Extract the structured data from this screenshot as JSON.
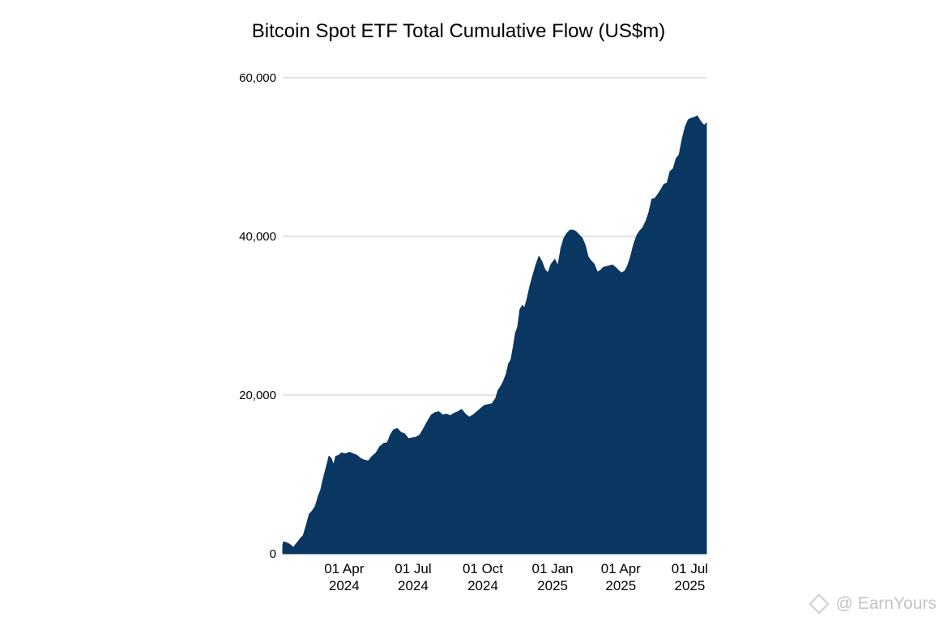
{
  "chart_data": {
    "type": "area",
    "title": "Bitcoin Spot ETF Total Cumulative Flow (US$m)",
    "xlabel": "",
    "ylabel": "",
    "ylim": [
      0,
      60000
    ],
    "yticks": [
      {
        "value": 0,
        "label": "0"
      },
      {
        "value": 20000,
        "label": "20,000"
      },
      {
        "value": 40000,
        "label": "40,000"
      },
      {
        "value": 60000,
        "label": "60,000"
      }
    ],
    "xlim": [
      "2024-01-11",
      "2025-07-23"
    ],
    "xticks": [
      {
        "date": "2024-04-01",
        "line1": "01 Apr",
        "line2": "2024"
      },
      {
        "date": "2024-07-01",
        "line1": "01 Jul",
        "line2": "2024"
      },
      {
        "date": "2024-10-01",
        "line1": "01 Oct",
        "line2": "2024"
      },
      {
        "date": "2025-01-01",
        "line1": "01 Jan",
        "line2": "2025"
      },
      {
        "date": "2025-04-01",
        "line1": "01 Apr",
        "line2": "2025"
      },
      {
        "date": "2025-07-01",
        "line1": "01 Jul",
        "line2": "2025"
      }
    ],
    "grid": true,
    "colors": {
      "area": "#0a3762",
      "grid": "#d0d0d0"
    },
    "series": [
      {
        "points": [
          [
            "2024-01-11",
            1000
          ],
          [
            "2024-01-12",
            1500
          ],
          [
            "2024-01-16",
            1400
          ],
          [
            "2024-01-20",
            1200
          ],
          [
            "2024-01-25",
            800
          ],
          [
            "2024-01-30",
            1400
          ],
          [
            "2024-02-03",
            1900
          ],
          [
            "2024-02-07",
            2300
          ],
          [
            "2024-02-11",
            3600
          ],
          [
            "2024-02-15",
            5000
          ],
          [
            "2024-02-19",
            5400
          ],
          [
            "2024-02-23",
            6000
          ],
          [
            "2024-02-27",
            7300
          ],
          [
            "2024-03-01",
            8000
          ],
          [
            "2024-03-04",
            9300
          ],
          [
            "2024-03-07",
            10400
          ],
          [
            "2024-03-10",
            11500
          ],
          [
            "2024-03-12",
            12300
          ],
          [
            "2024-03-15",
            12000
          ],
          [
            "2024-03-18",
            11200
          ],
          [
            "2024-03-21",
            12300
          ],
          [
            "2024-03-25",
            12400
          ],
          [
            "2024-03-28",
            12700
          ],
          [
            "2024-04-03",
            12600
          ],
          [
            "2024-04-08",
            12800
          ],
          [
            "2024-04-13",
            12600
          ],
          [
            "2024-04-18",
            12400
          ],
          [
            "2024-04-23",
            12000
          ],
          [
            "2024-04-28",
            11800
          ],
          [
            "2024-05-03",
            11700
          ],
          [
            "2024-05-08",
            12300
          ],
          [
            "2024-05-13",
            12700
          ],
          [
            "2024-05-18",
            13500
          ],
          [
            "2024-05-23",
            13900
          ],
          [
            "2024-05-28",
            14000
          ],
          [
            "2024-06-01",
            15000
          ],
          [
            "2024-06-05",
            15600
          ],
          [
            "2024-06-10",
            15800
          ],
          [
            "2024-06-15",
            15300
          ],
          [
            "2024-06-20",
            15100
          ],
          [
            "2024-06-25",
            14500
          ],
          [
            "2024-06-30",
            14600
          ],
          [
            "2024-07-05",
            14700
          ],
          [
            "2024-07-10",
            15000
          ],
          [
            "2024-07-15",
            15800
          ],
          [
            "2024-07-20",
            16700
          ],
          [
            "2024-07-25",
            17500
          ],
          [
            "2024-07-30",
            17800
          ],
          [
            "2024-08-04",
            17900
          ],
          [
            "2024-08-09",
            17500
          ],
          [
            "2024-08-14",
            17600
          ],
          [
            "2024-08-19",
            17400
          ],
          [
            "2024-08-24",
            17700
          ],
          [
            "2024-08-29",
            17900
          ],
          [
            "2024-09-03",
            18200
          ],
          [
            "2024-09-08",
            17600
          ],
          [
            "2024-09-13",
            17200
          ],
          [
            "2024-09-18",
            17500
          ],
          [
            "2024-09-23",
            17900
          ],
          [
            "2024-09-28",
            18300
          ],
          [
            "2024-10-03",
            18700
          ],
          [
            "2024-10-08",
            18800
          ],
          [
            "2024-10-13",
            18900
          ],
          [
            "2024-10-18",
            19600
          ],
          [
            "2024-10-21",
            20600
          ],
          [
            "2024-10-24",
            21000
          ],
          [
            "2024-10-28",
            21700
          ],
          [
            "2024-11-01",
            22700
          ],
          [
            "2024-11-04",
            24000
          ],
          [
            "2024-11-07",
            24400
          ],
          [
            "2024-11-10",
            26000
          ],
          [
            "2024-11-13",
            27800
          ],
          [
            "2024-11-16",
            28600
          ],
          [
            "2024-11-19",
            30800
          ],
          [
            "2024-11-22",
            31300
          ],
          [
            "2024-11-25",
            31000
          ],
          [
            "2024-11-28",
            32000
          ],
          [
            "2024-12-02",
            33700
          ],
          [
            "2024-12-06",
            35100
          ],
          [
            "2024-12-10",
            36400
          ],
          [
            "2024-12-14",
            37500
          ],
          [
            "2024-12-18",
            36800
          ],
          [
            "2024-12-22",
            35800
          ],
          [
            "2024-12-26",
            35400
          ],
          [
            "2024-12-30",
            36500
          ],
          [
            "2025-01-04",
            37100
          ],
          [
            "2025-01-08",
            36300
          ],
          [
            "2025-01-12",
            38500
          ],
          [
            "2025-01-16",
            39800
          ],
          [
            "2025-01-20",
            40400
          ],
          [
            "2025-01-24",
            40800
          ],
          [
            "2025-01-28",
            40800
          ],
          [
            "2025-02-01",
            40600
          ],
          [
            "2025-02-05",
            40200
          ],
          [
            "2025-02-09",
            39800
          ],
          [
            "2025-02-13",
            38900
          ],
          [
            "2025-02-17",
            37400
          ],
          [
            "2025-02-21",
            36900
          ],
          [
            "2025-02-25",
            36500
          ],
          [
            "2025-03-01",
            35500
          ],
          [
            "2025-03-05",
            35700
          ],
          [
            "2025-03-09",
            36100
          ],
          [
            "2025-03-13",
            36200
          ],
          [
            "2025-03-17",
            36300
          ],
          [
            "2025-03-21",
            36400
          ],
          [
            "2025-03-25",
            36100
          ],
          [
            "2025-03-29",
            35700
          ],
          [
            "2025-04-02",
            35400
          ],
          [
            "2025-04-06",
            35600
          ],
          [
            "2025-04-10",
            36300
          ],
          [
            "2025-04-14",
            37500
          ],
          [
            "2025-04-18",
            39000
          ],
          [
            "2025-04-22",
            40100
          ],
          [
            "2025-04-26",
            40700
          ],
          [
            "2025-04-30",
            41100
          ],
          [
            "2025-05-04",
            41900
          ],
          [
            "2025-05-08",
            43000
          ],
          [
            "2025-05-12",
            44700
          ],
          [
            "2025-05-16",
            44800
          ],
          [
            "2025-05-20",
            45300
          ],
          [
            "2025-05-24",
            45900
          ],
          [
            "2025-05-28",
            46600
          ],
          [
            "2025-06-01",
            46700
          ],
          [
            "2025-06-05",
            48200
          ],
          [
            "2025-06-09",
            48500
          ],
          [
            "2025-06-13",
            49800
          ],
          [
            "2025-06-17",
            50300
          ],
          [
            "2025-06-21",
            52300
          ],
          [
            "2025-06-25",
            53800
          ],
          [
            "2025-06-29",
            54700
          ],
          [
            "2025-07-03",
            54900
          ],
          [
            "2025-07-07",
            55000
          ],
          [
            "2025-07-11",
            55200
          ],
          [
            "2025-07-14",
            54700
          ],
          [
            "2025-07-17",
            54300
          ],
          [
            "2025-07-20",
            54000
          ],
          [
            "2025-07-23",
            54300
          ]
        ]
      }
    ]
  },
  "watermark": {
    "handle": "@ EarnYours"
  }
}
